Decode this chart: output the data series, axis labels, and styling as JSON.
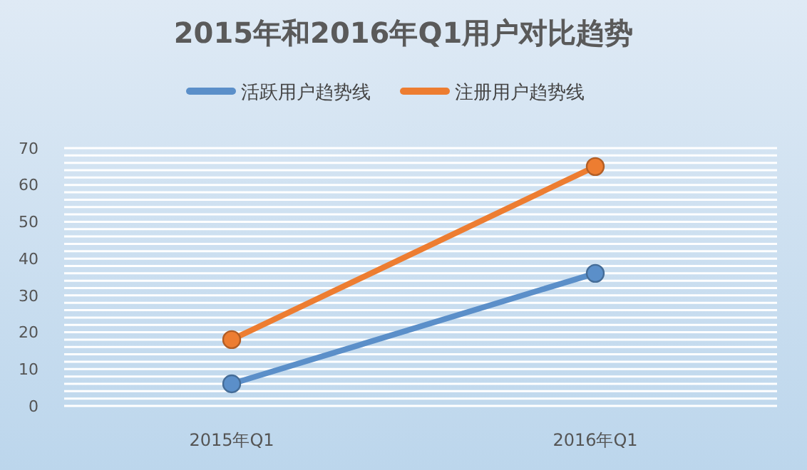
{
  "chart_data": {
    "type": "line",
    "title": "2015年和2016年Q1用户对比趋势",
    "categories": [
      "2015年Q1",
      "2016年Q1"
    ],
    "series": [
      {
        "name": "活跃用户趋势线",
        "color": "#5b8fc9",
        "values": [
          6,
          36
        ]
      },
      {
        "name": "注册用户趋势线",
        "color": "#ed7d31",
        "values": [
          18,
          65
        ]
      }
    ],
    "ylim": [
      0,
      70
    ],
    "yticks": [
      0,
      {
        "value": 2,
        "label": null
      },
      {
        "value": 4,
        "label": null
      },
      {
        "value": 6,
        "label": null
      },
      {
        "value": 8,
        "label": null
      },
      10,
      {
        "value": 12,
        "label": null
      },
      {
        "value": 14,
        "label": null
      },
      {
        "value": 16,
        "label": null
      },
      {
        "value": 18,
        "label": null
      },
      20,
      {
        "value": 22,
        "label": null
      },
      {
        "value": 24,
        "label": null
      },
      {
        "value": 26,
        "label": null
      },
      {
        "value": 28,
        "label": null
      },
      30,
      {
        "value": 32,
        "label": null
      },
      {
        "value": 34,
        "label": null
      },
      {
        "value": 36,
        "label": null
      },
      {
        "value": 38,
        "label": null
      },
      40,
      {
        "value": 42,
        "label": null
      },
      {
        "value": 44,
        "label": null
      },
      {
        "value": 46,
        "label": null
      },
      {
        "value": 48,
        "label": null
      },
      50,
      {
        "value": 52,
        "label": null
      },
      {
        "value": 54,
        "label": null
      },
      {
        "value": 56,
        "label": null
      },
      {
        "value": 58,
        "label": null
      },
      60,
      {
        "value": 62,
        "label": null
      },
      {
        "value": 64,
        "label": null
      },
      {
        "value": 66,
        "label": null
      },
      {
        "value": 68,
        "label": null
      },
      70
    ],
    "grid": "y",
    "legend": "top",
    "marker": "circle",
    "line_style": "solid"
  }
}
